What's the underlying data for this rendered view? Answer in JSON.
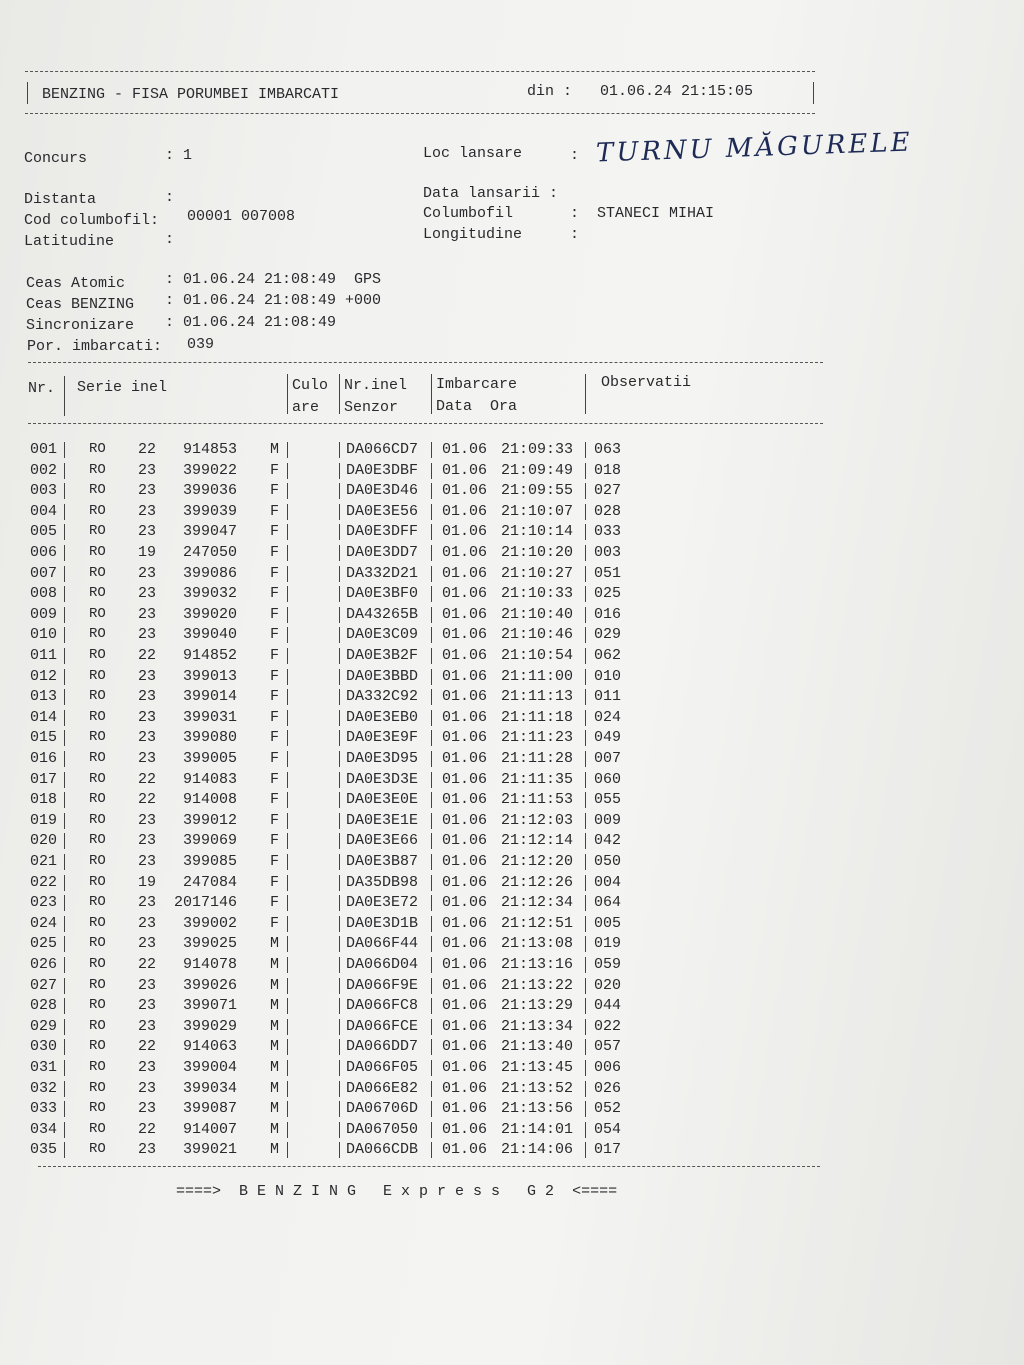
{
  "header": {
    "title": "BENZING - FISA PORUMBEI IMBARCATI",
    "din_label": "din :",
    "din_value": "01.06.24 21:15:05"
  },
  "info": {
    "concurs_label": "Concurs",
    "concurs_value": ": 1",
    "loc_label": "Loc lansare",
    "loc_sep": ":",
    "loc_value": "TURNU MĂGURELE",
    "distanta_label": "Distanta",
    "distanta_value": ":",
    "data_lansarii_label": "Data lansarii :",
    "cod_label": "Cod columbofil:",
    "cod_value": "00001 007008",
    "columbofil_label": "Columbofil",
    "columbofil_value": ":  STANECI MIHAI",
    "latitudine_label": "Latitudine",
    "latitudine_value": ":",
    "longitudine_label": "Longitudine",
    "longitudine_value": ":",
    "ceas_atomic_label": "Ceas Atomic",
    "ceas_atomic_value": ": 01.06.24 21:08:49  GPS",
    "ceas_benzing_label": "Ceas BENZING",
    "ceas_benzing_value": ": 01.06.24 21:08:49 +000",
    "sincronizare_label": "Sincronizare",
    "sincronizare_value": ": 01.06.24 21:08:49",
    "por_label": "Por. imbarcati:",
    "por_value": "039"
  },
  "table": {
    "headers": {
      "nr": "Nr.",
      "serie": "Serie inel",
      "culo1": "Culo",
      "culo2": "are",
      "nrinel1": "Nr.inel",
      "nrinel2": "Senzor",
      "imb1": "Imbarcare",
      "imb2": "Data  Ora",
      "obs": "Observatii"
    },
    "rows": [
      [
        "001",
        "RO",
        "22",
        "914853",
        "M",
        "DA066CD7",
        "01.06",
        "21:09:33",
        "063"
      ],
      [
        "002",
        "RO",
        "23",
        "399022",
        "F",
        "DA0E3DBF",
        "01.06",
        "21:09:49",
        "018"
      ],
      [
        "003",
        "RO",
        "23",
        "399036",
        "F",
        "DA0E3D46",
        "01.06",
        "21:09:55",
        "027"
      ],
      [
        "004",
        "RO",
        "23",
        "399039",
        "F",
        "DA0E3E56",
        "01.06",
        "21:10:07",
        "028"
      ],
      [
        "005",
        "RO",
        "23",
        "399047",
        "F",
        "DA0E3DFF",
        "01.06",
        "21:10:14",
        "033"
      ],
      [
        "006",
        "RO",
        "19",
        "247050",
        "F",
        "DA0E3DD7",
        "01.06",
        "21:10:20",
        "003"
      ],
      [
        "007",
        "RO",
        "23",
        "399086",
        "F",
        "DA332D21",
        "01.06",
        "21:10:27",
        "051"
      ],
      [
        "008",
        "RO",
        "23",
        "399032",
        "F",
        "DA0E3BF0",
        "01.06",
        "21:10:33",
        "025"
      ],
      [
        "009",
        "RO",
        "23",
        "399020",
        "F",
        "DA43265B",
        "01.06",
        "21:10:40",
        "016"
      ],
      [
        "010",
        "RO",
        "23",
        "399040",
        "F",
        "DA0E3C09",
        "01.06",
        "21:10:46",
        "029"
      ],
      [
        "011",
        "RO",
        "22",
        "914852",
        "F",
        "DA0E3B2F",
        "01.06",
        "21:10:54",
        "062"
      ],
      [
        "012",
        "RO",
        "23",
        "399013",
        "F",
        "DA0E3BBD",
        "01.06",
        "21:11:00",
        "010"
      ],
      [
        "013",
        "RO",
        "23",
        "399014",
        "F",
        "DA332C92",
        "01.06",
        "21:11:13",
        "011"
      ],
      [
        "014",
        "RO",
        "23",
        "399031",
        "F",
        "DA0E3EB0",
        "01.06",
        "21:11:18",
        "024"
      ],
      [
        "015",
        "RO",
        "23",
        "399080",
        "F",
        "DA0E3E9F",
        "01.06",
        "21:11:23",
        "049"
      ],
      [
        "016",
        "RO",
        "23",
        "399005",
        "F",
        "DA0E3D95",
        "01.06",
        "21:11:28",
        "007"
      ],
      [
        "017",
        "RO",
        "22",
        "914083",
        "F",
        "DA0E3D3E",
        "01.06",
        "21:11:35",
        "060"
      ],
      [
        "018",
        "RO",
        "22",
        "914008",
        "F",
        "DA0E3E0E",
        "01.06",
        "21:11:53",
        "055"
      ],
      [
        "019",
        "RO",
        "23",
        "399012",
        "F",
        "DA0E3E1E",
        "01.06",
        "21:12:03",
        "009"
      ],
      [
        "020",
        "RO",
        "23",
        "399069",
        "F",
        "DA0E3E66",
        "01.06",
        "21:12:14",
        "042"
      ],
      [
        "021",
        "RO",
        "23",
        "399085",
        "F",
        "DA0E3B87",
        "01.06",
        "21:12:20",
        "050"
      ],
      [
        "022",
        "RO",
        "19",
        "247084",
        "F",
        "DA35DB98",
        "01.06",
        "21:12:26",
        "004"
      ],
      [
        "023",
        "RO",
        "23",
        "2017146",
        "F",
        "DA0E3E72",
        "01.06",
        "21:12:34",
        "064"
      ],
      [
        "024",
        "RO",
        "23",
        "399002",
        "F",
        "DA0E3D1B",
        "01.06",
        "21:12:51",
        "005"
      ],
      [
        "025",
        "RO",
        "23",
        "399025",
        "M",
        "DA066F44",
        "01.06",
        "21:13:08",
        "019"
      ],
      [
        "026",
        "RO",
        "22",
        "914078",
        "M",
        "DA066D04",
        "01.06",
        "21:13:16",
        "059"
      ],
      [
        "027",
        "RO",
        "23",
        "399026",
        "M",
        "DA066F9E",
        "01.06",
        "21:13:22",
        "020"
      ],
      [
        "028",
        "RO",
        "23",
        "399071",
        "M",
        "DA066FC8",
        "01.06",
        "21:13:29",
        "044"
      ],
      [
        "029",
        "RO",
        "23",
        "399029",
        "M",
        "DA066FCE",
        "01.06",
        "21:13:34",
        "022"
      ],
      [
        "030",
        "RO",
        "22",
        "914063",
        "M",
        "DA066DD7",
        "01.06",
        "21:13:40",
        "057"
      ],
      [
        "031",
        "RO",
        "23",
        "399004",
        "M",
        "DA066F05",
        "01.06",
        "21:13:45",
        "006"
      ],
      [
        "032",
        "RO",
        "23",
        "399034",
        "M",
        "DA066E82",
        "01.06",
        "21:13:52",
        "026"
      ],
      [
        "033",
        "RO",
        "23",
        "399087",
        "M",
        "DA06706D",
        "01.06",
        "21:13:56",
        "052"
      ],
      [
        "034",
        "RO",
        "22",
        "914007",
        "M",
        "DA067050",
        "01.06",
        "21:14:01",
        "054"
      ],
      [
        "035",
        "RO",
        "23",
        "399021",
        "M",
        "DA066CDB",
        "01.06",
        "21:14:06",
        "017"
      ]
    ]
  },
  "footer": {
    "text": "====>  B E N Z I N G   E x p r e s s   G 2  <===="
  }
}
